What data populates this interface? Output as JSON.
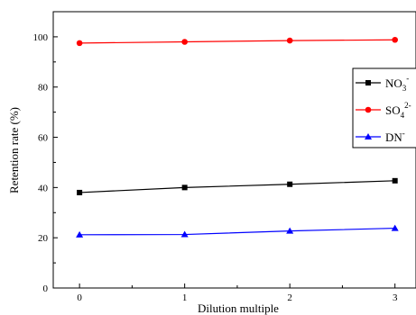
{
  "chart_data": {
    "type": "line",
    "x": [
      0,
      1,
      2,
      3
    ],
    "xticks": [
      "0",
      "1",
      "2",
      "3"
    ],
    "yticks": [
      "0",
      "20",
      "40",
      "60",
      "80",
      "100"
    ],
    "xlabel": "Dilution multiple",
    "ylabel": "Retention rate (%)",
    "xlim": [
      -0.25,
      3.2
    ],
    "ylim": [
      0,
      110
    ],
    "grid": false,
    "legend_position": "right",
    "series": [
      {
        "name": "NO",
        "sub": "3",
        "sup": "-",
        "color": "#000000",
        "marker": "square",
        "values": [
          38.0,
          40.0,
          41.3,
          42.7
        ]
      },
      {
        "name": "SO",
        "sub": "4",
        "sup": "2-",
        "color": "#ff0000",
        "marker": "circle",
        "values": [
          97.5,
          98.0,
          98.5,
          98.8
        ]
      },
      {
        "name": "DN",
        "sub": "",
        "sup": "-",
        "color": "#0000ff",
        "marker": "triangle",
        "values": [
          21.2,
          21.3,
          22.7,
          23.8
        ]
      }
    ]
  }
}
